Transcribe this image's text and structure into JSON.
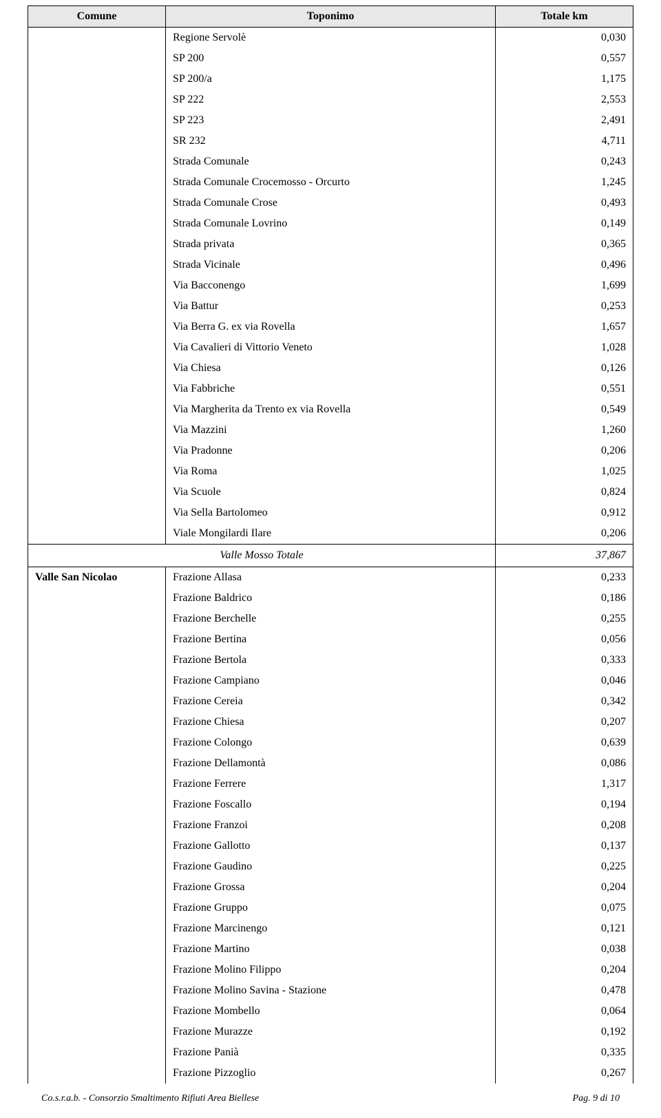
{
  "table": {
    "headers": {
      "comune": "Comune",
      "toponimo": "Toponimo",
      "totale": "Totale km"
    },
    "section1": {
      "rows": [
        {
          "toponimo": "Regione Servolè",
          "totale": "0,030"
        },
        {
          "toponimo": "SP 200",
          "totale": "0,557"
        },
        {
          "toponimo": "SP 200/a",
          "totale": "1,175"
        },
        {
          "toponimo": "SP 222",
          "totale": "2,553"
        },
        {
          "toponimo": "SP 223",
          "totale": "2,491"
        },
        {
          "toponimo": "SR 232",
          "totale": "4,711"
        },
        {
          "toponimo": "Strada Comunale",
          "totale": "0,243"
        },
        {
          "toponimo": "Strada Comunale Crocemosso - Orcurto",
          "totale": "1,245"
        },
        {
          "toponimo": "Strada Comunale Crose",
          "totale": "0,493"
        },
        {
          "toponimo": "Strada Comunale Lovrino",
          "totale": "0,149"
        },
        {
          "toponimo": "Strada privata",
          "totale": "0,365"
        },
        {
          "toponimo": "Strada Vicinale",
          "totale": "0,496"
        },
        {
          "toponimo": "Via Bacconengo",
          "totale": "1,699"
        },
        {
          "toponimo": "Via Battur",
          "totale": "0,253"
        },
        {
          "toponimo": "Via Berra G. ex via Rovella",
          "totale": "1,657"
        },
        {
          "toponimo": "Via Cavalieri di Vittorio Veneto",
          "totale": "1,028"
        },
        {
          "toponimo": "Via Chiesa",
          "totale": "0,126"
        },
        {
          "toponimo": "Via Fabbriche",
          "totale": "0,551"
        },
        {
          "toponimo": "Via Margherita da Trento ex via Rovella",
          "totale": "0,549"
        },
        {
          "toponimo": "Via Mazzini",
          "totale": "1,260"
        },
        {
          "toponimo": "Via Pradonne",
          "totale": "0,206"
        },
        {
          "toponimo": "Via Roma",
          "totale": "1,025"
        },
        {
          "toponimo": "Via Scuole",
          "totale": "0,824"
        },
        {
          "toponimo": "Via Sella Bartolomeo",
          "totale": "0,912"
        },
        {
          "toponimo": "Viale Mongilardi Ilare",
          "totale": "0,206"
        }
      ]
    },
    "total1": {
      "label": "Valle Mosso Totale",
      "value": "37,867"
    },
    "section2": {
      "comune": "Valle San Nicolao",
      "rows": [
        {
          "toponimo": "Frazione Allasa",
          "totale": "0,233"
        },
        {
          "toponimo": "Frazione Baldrico",
          "totale": "0,186"
        },
        {
          "toponimo": "Frazione Berchelle",
          "totale": "0,255"
        },
        {
          "toponimo": "Frazione Bertina",
          "totale": "0,056"
        },
        {
          "toponimo": "Frazione Bertola",
          "totale": "0,333"
        },
        {
          "toponimo": "Frazione Campiano",
          "totale": "0,046"
        },
        {
          "toponimo": "Frazione Cereia",
          "totale": "0,342"
        },
        {
          "toponimo": "Frazione Chiesa",
          "totale": "0,207"
        },
        {
          "toponimo": "Frazione Colongo",
          "totale": "0,639"
        },
        {
          "toponimo": "Frazione Dellamontà",
          "totale": "0,086"
        },
        {
          "toponimo": "Frazione Ferrere",
          "totale": "1,317"
        },
        {
          "toponimo": "Frazione Foscallo",
          "totale": "0,194"
        },
        {
          "toponimo": "Frazione Franzoi",
          "totale": "0,208"
        },
        {
          "toponimo": "Frazione Gallotto",
          "totale": "0,137"
        },
        {
          "toponimo": "Frazione Gaudino",
          "totale": "0,225"
        },
        {
          "toponimo": "Frazione Grossa",
          "totale": "0,204"
        },
        {
          "toponimo": "Frazione Gruppo",
          "totale": "0,075"
        },
        {
          "toponimo": "Frazione Marcinengo",
          "totale": "0,121"
        },
        {
          "toponimo": "Frazione Martino",
          "totale": "0,038"
        },
        {
          "toponimo": "Frazione Molino Filippo",
          "totale": "0,204"
        },
        {
          "toponimo": "Frazione Molino Savina - Stazione",
          "totale": "0,478"
        },
        {
          "toponimo": "Frazione Mombello",
          "totale": "0,064"
        },
        {
          "toponimo": "Frazione Murazze",
          "totale": "0,192"
        },
        {
          "toponimo": "Frazione Panià",
          "totale": "0,335"
        },
        {
          "toponimo": "Frazione Pizzoglio",
          "totale": "0,267"
        }
      ]
    }
  },
  "footer": {
    "left": "Co.s.r.a.b. - Consorzio Smaltimento Rifiuti Area Biellese",
    "right": "Pag. 9 di 10"
  }
}
